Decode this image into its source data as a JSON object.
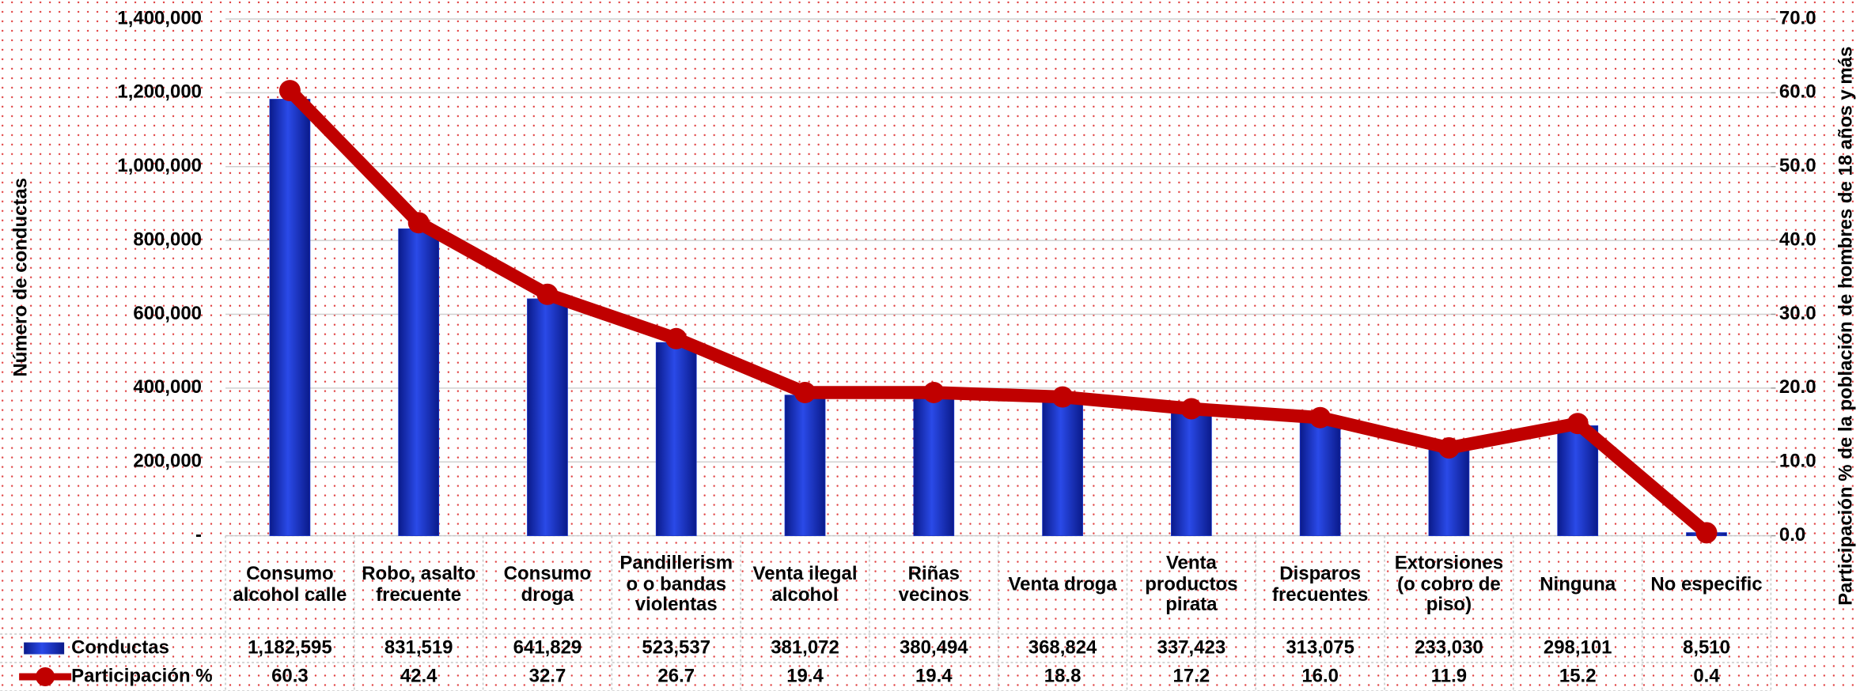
{
  "chart_data": {
    "type": "bar+line",
    "y_label": "Número de conductas",
    "y2_label": "Participación % de la población de hombres de 18 años y más",
    "categories": [
      "Consumo alcohol calle",
      "Robo, asalto frecuente",
      "Consumo droga",
      "Pandillerismo o bandas violentas",
      "Venta ilegal alcohol",
      "Riñas vecinos",
      "Venta droga",
      "Venta productos pirata",
      "Disparos frecuentes",
      "Extorsiones (o cobro de piso)",
      "Ninguna",
      "No especific"
    ],
    "series": [
      {
        "name": "Conductas",
        "type": "bar",
        "color": "#1a33cc",
        "values": [
          1182595,
          831519,
          641829,
          523537,
          381072,
          380494,
          368824,
          337423,
          313075,
          233030,
          298101,
          8510
        ],
        "value_labels": [
          "1,182,595",
          "831,519",
          "641,829",
          "523,537",
          "381,072",
          "380,494",
          "368,824",
          "337,423",
          "313,075",
          "233,030",
          "298,101",
          "8,510"
        ]
      },
      {
        "name": "Participación %",
        "type": "line",
        "axis": "y2",
        "color": "#c00000",
        "values": [
          60.3,
          42.4,
          32.7,
          26.7,
          19.4,
          19.4,
          18.8,
          17.2,
          16.0,
          11.9,
          15.2,
          0.4
        ],
        "value_labels": [
          "60.3",
          "42.4",
          "32.7",
          "26.7",
          "19.4",
          "19.4",
          "18.8",
          "17.2",
          "16.0",
          "11.9",
          "15.2",
          "0.4"
        ]
      }
    ],
    "ylim": [
      0,
      1400000
    ],
    "yticks": [
      {
        "value": 0,
        "label": "-"
      },
      {
        "value": 200000,
        "label": "200,000"
      },
      {
        "value": 400000,
        "label": "400,000"
      },
      {
        "value": 600000,
        "label": "600,000"
      },
      {
        "value": 800000,
        "label": "800,000"
      },
      {
        "value": 1000000,
        "label": "1,000,000"
      },
      {
        "value": 1200000,
        "label": "1,200,000"
      },
      {
        "value": 1400000,
        "label": "1,400,000"
      }
    ],
    "y2lim": [
      0,
      70
    ],
    "y2ticks": [
      {
        "value": 0,
        "label": "0.0"
      },
      {
        "value": 10,
        "label": "10.0"
      },
      {
        "value": 20,
        "label": "20.0"
      },
      {
        "value": 30,
        "label": "30.0"
      },
      {
        "value": 40,
        "label": "40.0"
      },
      {
        "value": 50,
        "label": "50.0"
      },
      {
        "value": 60,
        "label": "60.0"
      },
      {
        "value": 70,
        "label": "70.0"
      }
    ],
    "grid": true
  }
}
